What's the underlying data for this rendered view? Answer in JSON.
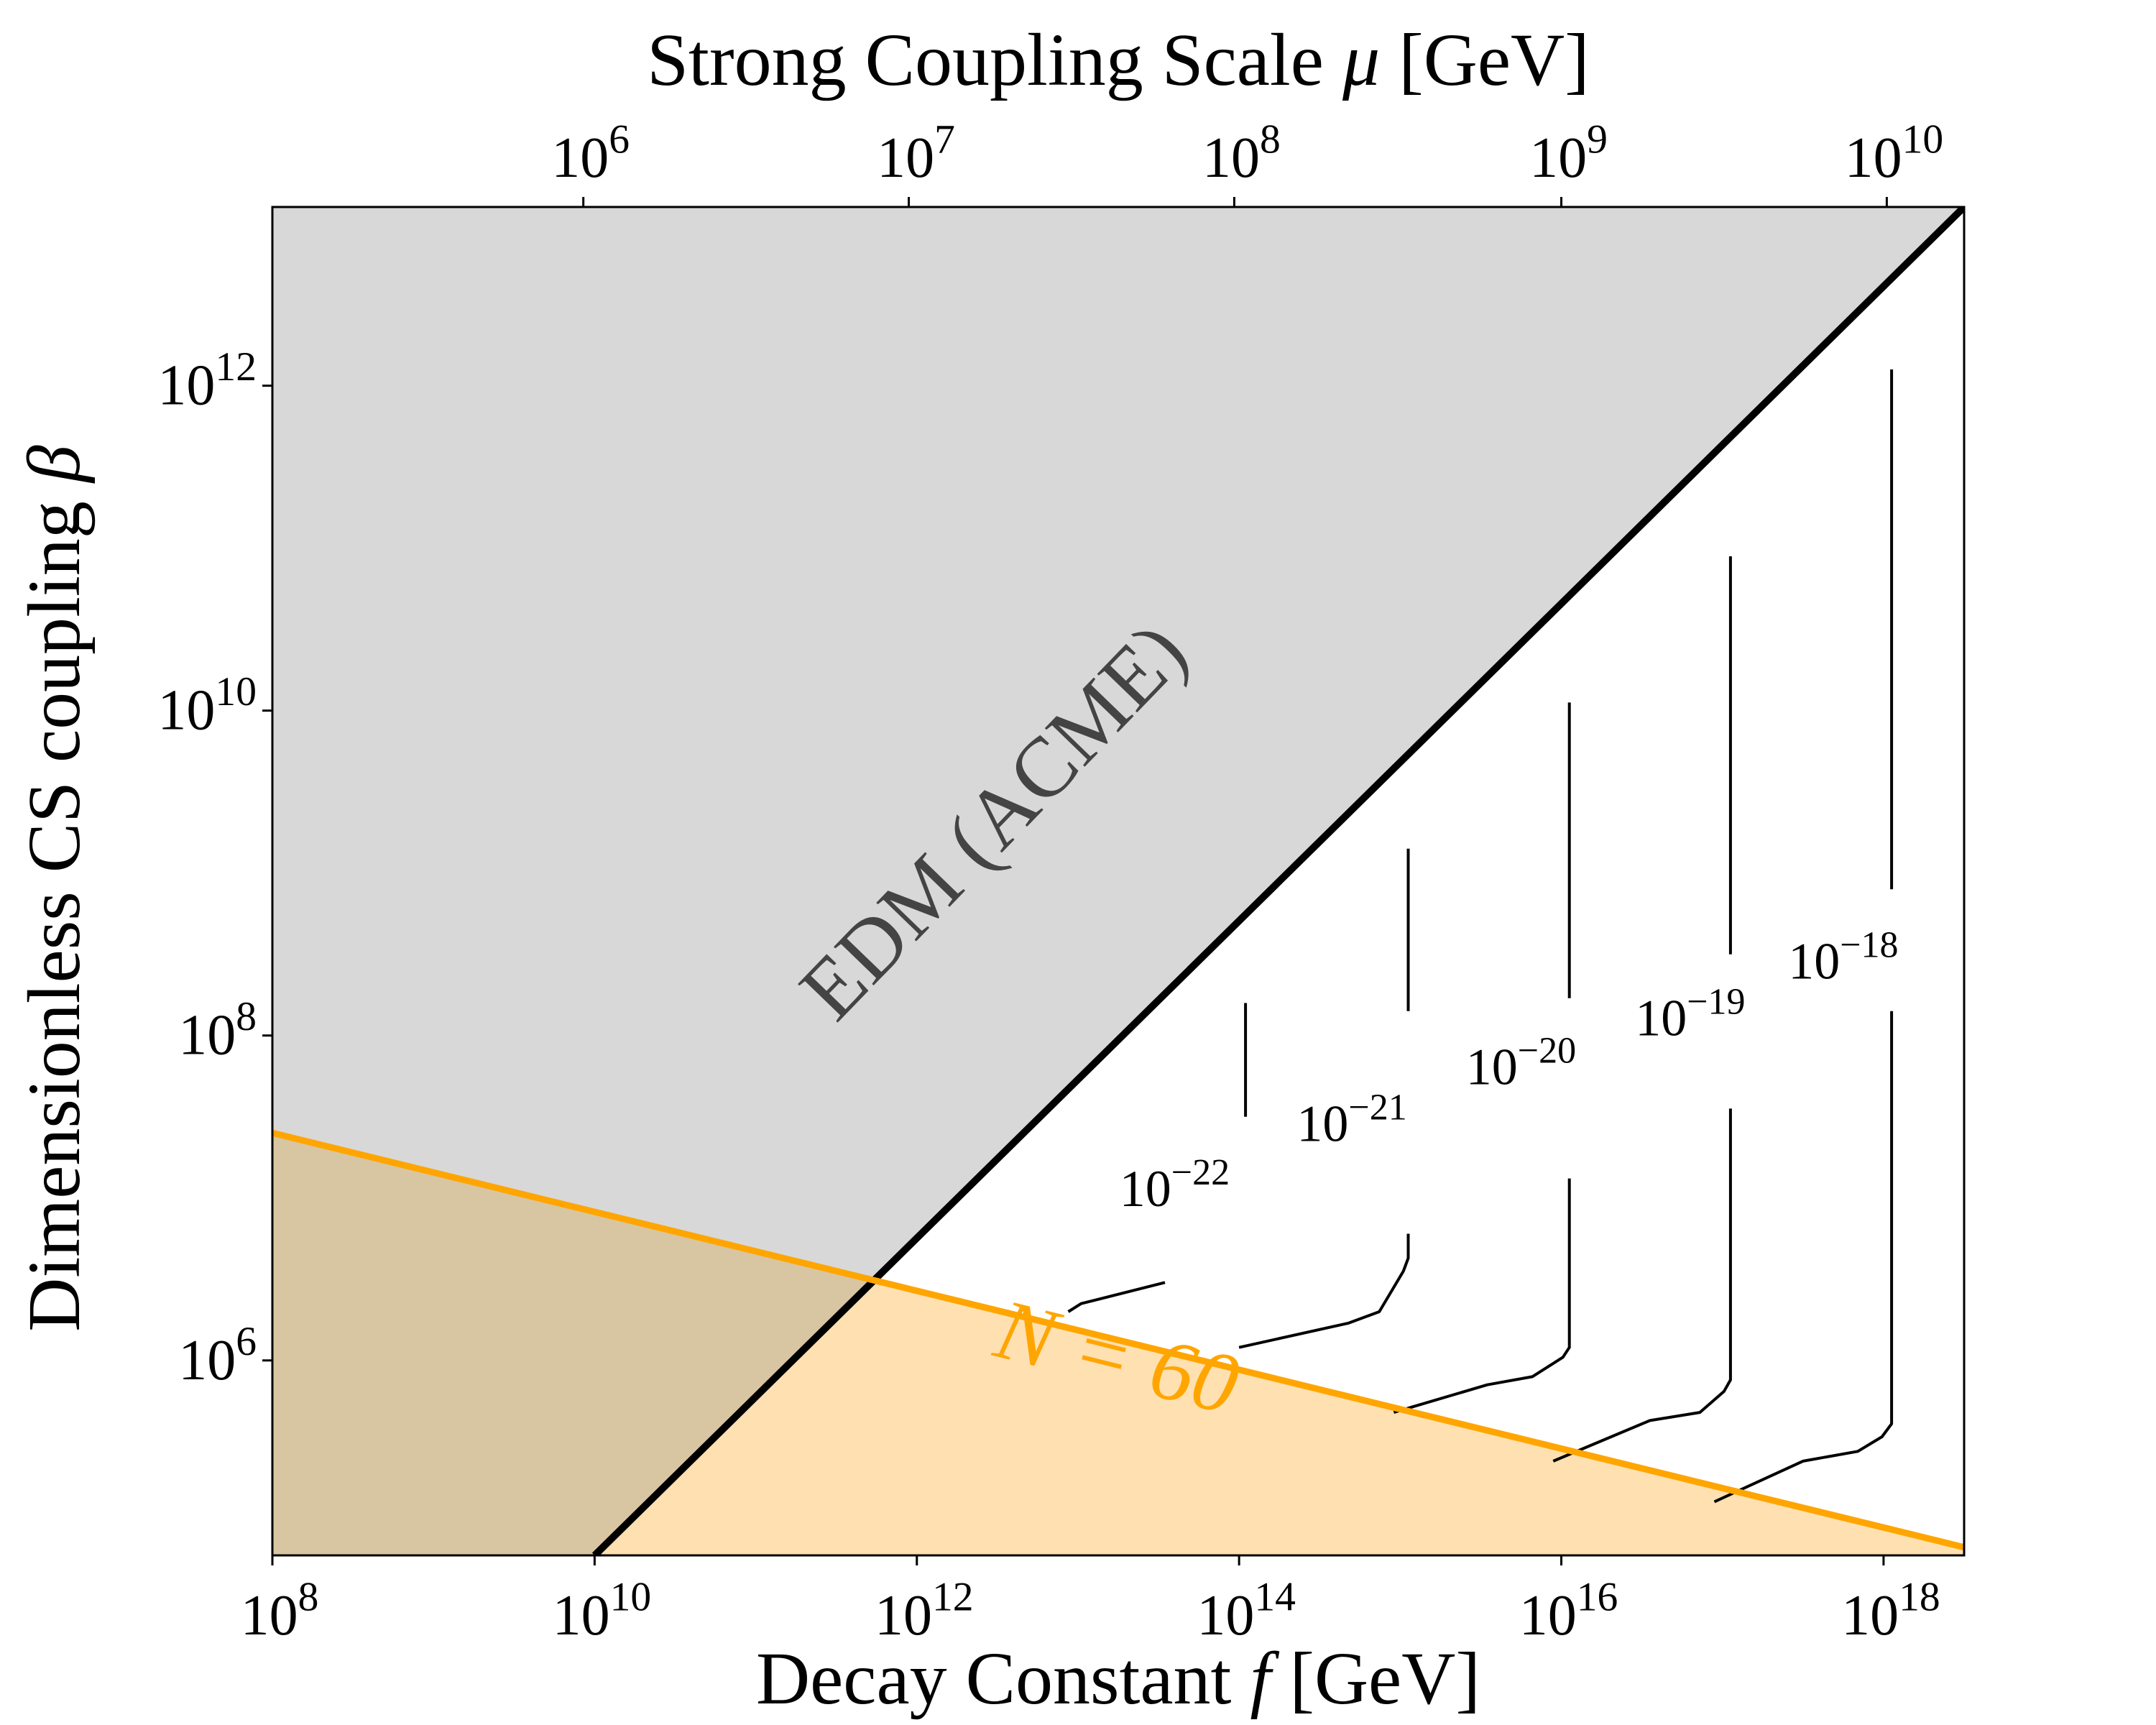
{
  "chart_data": {
    "type": "line",
    "x_axis": {
      "label_prefix": "Decay Constant ",
      "label_var": "f",
      "label_suffix": " [GeV]",
      "scale": "log",
      "range": [
        8,
        18.5
      ],
      "ticks": [
        {
          "value": 8,
          "base": "10",
          "exp": "8"
        },
        {
          "value": 10,
          "base": "10",
          "exp": "10"
        },
        {
          "value": 12,
          "base": "10",
          "exp": "12"
        },
        {
          "value": 14,
          "base": "10",
          "exp": "14"
        },
        {
          "value": 16,
          "base": "10",
          "exp": "16"
        },
        {
          "value": 18,
          "base": "10",
          "exp": "18"
        }
      ]
    },
    "top_axis": {
      "label_prefix": "Strong Coupling Scale ",
      "label_var": "μ",
      "label_suffix": " [GeV]",
      "scale": "log",
      "ticks": [
        {
          "f_position": 9.93,
          "base": "10",
          "exp": "6"
        },
        {
          "f_position": 11.95,
          "base": "10",
          "exp": "7"
        },
        {
          "f_position": 13.97,
          "base": "10",
          "exp": "8"
        },
        {
          "f_position": 16.0,
          "base": "10",
          "exp": "9"
        },
        {
          "f_position": 18.02,
          "base": "10",
          "exp": "10"
        }
      ]
    },
    "y_axis": {
      "label_prefix": "Dimensionless CS coupling ",
      "label_var": "β",
      "scale": "log",
      "range": [
        4.8,
        13.1
      ],
      "ticks": [
        {
          "value": 6,
          "base": "10",
          "exp": "6"
        },
        {
          "value": 8,
          "base": "10",
          "exp": "8"
        },
        {
          "value": 10,
          "base": "10",
          "exp": "10"
        },
        {
          "value": 12,
          "base": "10",
          "exp": "12"
        }
      ]
    },
    "series": [
      {
        "name": "EDM (ACME)",
        "color": "#000000",
        "points": [
          [
            10.0,
            4.8
          ],
          [
            18.5,
            13.1
          ]
        ]
      },
      {
        "name": "N = 60",
        "color": "#ffa500",
        "points": [
          [
            8.0,
            7.4
          ],
          [
            18.5,
            4.85
          ]
        ]
      }
    ],
    "regions": [
      {
        "name": "edm-excluded",
        "color": "#d8d8d8"
      },
      {
        "name": "n60-excluded",
        "color": "#ffe0b0"
      },
      {
        "name": "overlap",
        "color": "#d8c6a2"
      }
    ],
    "contours": [
      {
        "label_base": "10",
        "label_exp": "−22",
        "label_at": [
          13.6,
          6.95
        ],
        "segments": [
          [
            [
              14.04,
              8.2
            ],
            [
              14.04,
              7.5
            ]
          ],
          [
            [
              12.94,
              6.3
            ],
            [
              13.02,
              6.35
            ],
            [
              13.54,
              6.48
            ]
          ]
        ]
      },
      {
        "label_base": "10",
        "label_exp": "−21",
        "label_at": [
          14.7,
          7.35
        ],
        "segments": [
          [
            [
              15.05,
              9.15
            ],
            [
              15.05,
              8.15
            ]
          ],
          [
            [
              15.05,
              6.78
            ],
            [
              15.05,
              6.63
            ],
            [
              15.02,
              6.55
            ],
            [
              14.87,
              6.3
            ],
            [
              14.68,
              6.23
            ],
            [
              14.0,
              6.08
            ]
          ]
        ]
      },
      {
        "label_base": "10",
        "label_exp": "−20",
        "label_at": [
          15.75,
          7.7
        ],
        "segments": [
          [
            [
              16.05,
              10.05
            ],
            [
              16.05,
              8.23
            ]
          ],
          [
            [
              16.05,
              7.12
            ],
            [
              16.05,
              6.08
            ],
            [
              16.01,
              6.02
            ],
            [
              15.82,
              5.9
            ],
            [
              15.54,
              5.85
            ],
            [
              14.96,
              5.68
            ]
          ]
        ]
      },
      {
        "label_base": "10",
        "label_exp": "−19",
        "label_at": [
          16.8,
          8.0
        ],
        "segments": [
          [
            [
              17.05,
              10.95
            ],
            [
              17.05,
              8.5
            ]
          ],
          [
            [
              17.05,
              7.55
            ],
            [
              17.05,
              5.88
            ],
            [
              17.01,
              5.81
            ],
            [
              16.86,
              5.68
            ],
            [
              16.55,
              5.63
            ],
            [
              15.95,
              5.38
            ]
          ]
        ]
      },
      {
        "label_base": "10",
        "label_exp": "−18",
        "label_at": [
          17.75,
          8.35
        ],
        "segments": [
          [
            [
              18.05,
              12.1
            ],
            [
              18.05,
              8.9
            ]
          ],
          [
            [
              18.05,
              8.15
            ],
            [
              18.05,
              5.61
            ],
            [
              17.99,
              5.53
            ],
            [
              17.84,
              5.44
            ],
            [
              17.5,
              5.38
            ],
            [
              16.95,
              5.13
            ]
          ]
        ]
      }
    ],
    "annotations": [
      {
        "name": "edm-label",
        "text": "EDM (ACME)",
        "color": "#444444",
        "at": [
          12.6,
          9.2
        ],
        "rotate": -46
      },
      {
        "name": "n60-label",
        "text": "N = 60",
        "color": "#ffa500",
        "at": [
          13.2,
          5.85
        ],
        "rotate": 14
      }
    ],
    "grid": false,
    "legend": "none"
  }
}
